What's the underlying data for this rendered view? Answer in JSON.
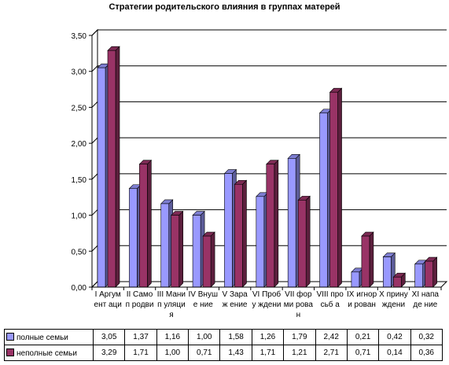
{
  "chart_data": {
    "type": "bar",
    "title": "Стратегии родительского влияния в группах матерей",
    "categories": [
      "I Аргумент аци",
      "II Самоп родви",
      "III Манип уляция",
      "IV Внуше ние",
      "V Зараж ение",
      "VI Пробу ждени",
      "VII форми рован",
      "VIII просьб а",
      "IX игнори рован",
      "X прину ждени",
      "XI нападе ние"
    ],
    "series": [
      {
        "name": "полные семьи",
        "color": "#9999FF",
        "values": [
          3.05,
          1.37,
          1.16,
          1.0,
          1.58,
          1.26,
          1.79,
          2.42,
          0.21,
          0.42,
          0.32
        ],
        "display": [
          "3,05",
          "1,37",
          "1,16",
          "1,00",
          "1,58",
          "1,26",
          "1,79",
          "2,42",
          "0,21",
          "0,42",
          "0,32"
        ]
      },
      {
        "name": "неполные семьи",
        "color": "#993366",
        "values": [
          3.29,
          1.71,
          1.0,
          0.71,
          1.43,
          1.71,
          1.21,
          2.71,
          0.71,
          0.14,
          0.36
        ],
        "display": [
          "3,29",
          "1,71",
          "1,00",
          "0,71",
          "1,43",
          "1,71",
          "1,21",
          "2,71",
          "0,71",
          "0,14",
          "0,36"
        ]
      }
    ],
    "ylim": [
      0,
      3.5
    ],
    "yticks": [
      "0,00",
      "0,50",
      "1,00",
      "1,50",
      "2,00",
      "2,50",
      "3,00",
      "3,50"
    ],
    "grid": true,
    "legend": "data-table"
  }
}
